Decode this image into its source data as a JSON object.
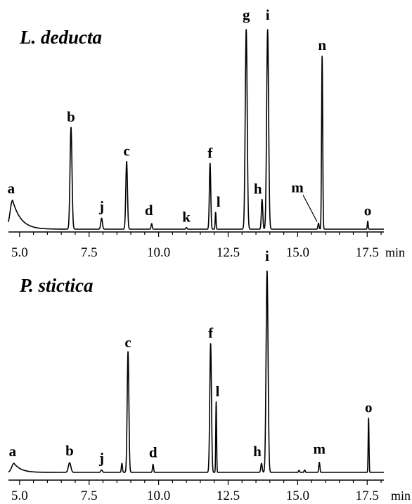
{
  "chart_data": [
    {
      "type": "line",
      "title": "L. deducta",
      "xlabel": "min",
      "x_unit": "min",
      "xlim": [
        4.6,
        18.1
      ],
      "ylim": [
        0,
        1
      ],
      "x_ticks": [
        5.0,
        7.5,
        10.0,
        12.5,
        15.0,
        17.5
      ],
      "x_tick_labels": [
        "5.0",
        "7.5",
        "10.0",
        "12.5",
        "15.0",
        "17.5"
      ],
      "peaks": [
        {
          "label": "a",
          "x": 4.75,
          "height": 0.145,
          "width": 0.09,
          "tail": 0.3
        },
        {
          "label": "b",
          "x": 6.85,
          "height": 0.51,
          "width": 0.035
        },
        {
          "label": "j",
          "x": 7.95,
          "height": 0.055,
          "width": 0.03
        },
        {
          "label": "c",
          "x": 8.85,
          "height": 0.34,
          "width": 0.03
        },
        {
          "label": "d",
          "x": 9.75,
          "height": 0.028,
          "width": 0.02
        },
        {
          "label": "k",
          "x": 11.0,
          "height": 0.008,
          "width": 0.02
        },
        {
          "label": "f",
          "x": 11.85,
          "height": 0.33,
          "width": 0.025
        },
        {
          "label": "l",
          "x": 12.05,
          "height": 0.085,
          "width": 0.015
        },
        {
          "label": "g",
          "x": 13.15,
          "height": 1.0,
          "width": 0.035
        },
        {
          "label": "h",
          "x": 13.72,
          "height": 0.15,
          "width": 0.025
        },
        {
          "label": "i",
          "x": 13.92,
          "height": 1.0,
          "width": 0.035
        },
        {
          "label": "m",
          "x": 15.75,
          "height": 0.03,
          "width": 0.02
        },
        {
          "label": "n",
          "x": 15.88,
          "height": 0.87,
          "width": 0.02
        },
        {
          "label": "o",
          "x": 17.52,
          "height": 0.04,
          "width": 0.015
        }
      ]
    },
    {
      "type": "line",
      "title": "P. stictica",
      "xlabel": "min",
      "x_unit": "min",
      "xlim": [
        4.6,
        18.1
      ],
      "ylim": [
        0,
        1
      ],
      "x_ticks": [
        5.0,
        7.5,
        10.0,
        12.5,
        15.0,
        17.5
      ],
      "x_tick_labels": [
        "5.0",
        "7.5",
        "10.0",
        "12.5",
        "15.0",
        "17.5"
      ],
      "peaks": [
        {
          "label": "a",
          "x": 4.8,
          "height": 0.045,
          "width": 0.08,
          "tail": 0.25
        },
        {
          "label": "b",
          "x": 6.8,
          "height": 0.048,
          "width": 0.045
        },
        {
          "label": "j",
          "x": 7.95,
          "height": 0.012,
          "width": 0.03
        },
        {
          "label": "",
          "x": 8.68,
          "height": 0.045,
          "width": 0.02
        },
        {
          "label": "c",
          "x": 8.9,
          "height": 0.6,
          "width": 0.03
        },
        {
          "label": "d",
          "x": 9.8,
          "height": 0.04,
          "width": 0.02
        },
        {
          "label": "f",
          "x": 11.87,
          "height": 0.64,
          "width": 0.03
        },
        {
          "label": "l",
          "x": 12.07,
          "height": 0.35,
          "width": 0.015
        },
        {
          "label": "h",
          "x": 13.7,
          "height": 0.045,
          "width": 0.025
        },
        {
          "label": "i",
          "x": 13.9,
          "height": 1.0,
          "width": 0.035
        },
        {
          "label": "",
          "x": 15.05,
          "height": 0.01,
          "width": 0.02
        },
        {
          "label": "",
          "x": 15.25,
          "height": 0.012,
          "width": 0.02
        },
        {
          "label": "m",
          "x": 15.78,
          "height": 0.05,
          "width": 0.02
        },
        {
          "label": "o",
          "x": 17.55,
          "height": 0.27,
          "width": 0.015
        }
      ]
    }
  ]
}
